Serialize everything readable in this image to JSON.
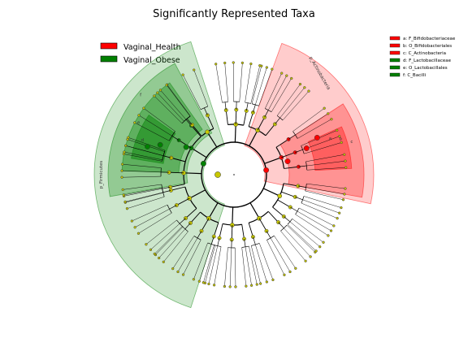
{
  "title": "Significantly Represented Taxa",
  "groups": [
    {
      "name": "Vaginal_Health",
      "color": "#ff0000"
    },
    {
      "name": "Vaginal_Obese",
      "color": "#008000"
    }
  ],
  "taxa_legend": [
    {
      "label": "a: F_Bifidobacteriaceae",
      "color": "#ff0000"
    },
    {
      "label": "b: O_Bifidobacteriales",
      "color": "#ff0000"
    },
    {
      "label": "c: C_Actinobacteria",
      "color": "#ff0000"
    },
    {
      "label": "d: F_Lactobacillaceae",
      "color": "#008000"
    },
    {
      "label": "e: O_Lactobacillales",
      "color": "#008000"
    },
    {
      "label": "f: C_Bacilli",
      "color": "#008000"
    }
  ],
  "clade_labels": {
    "actinobacteria": "p_Actinobacteria",
    "firmicutes": "p_Firmicutes",
    "a": "a",
    "b": "b",
    "c": "c",
    "d": "d",
    "e": "e",
    "f": "f"
  },
  "colors": {
    "node_neutral": "#c8c800",
    "line": "#000000"
  }
}
